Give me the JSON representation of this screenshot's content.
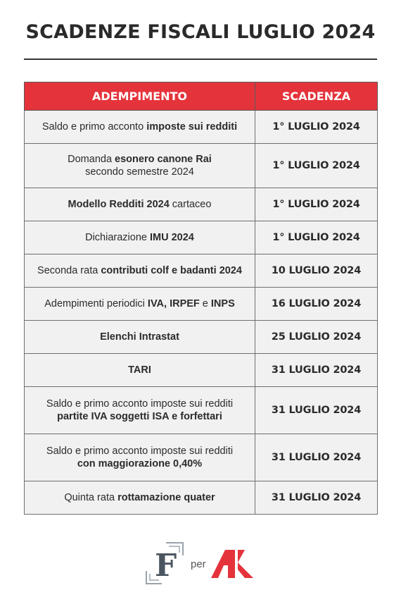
{
  "title": "SCADENZE FISCALI LUGLIO 2024",
  "table": {
    "headers": {
      "task": "ADEMPIMENTO",
      "deadline": "SCADENZA"
    },
    "rows": [
      {
        "task_parts": [
          {
            "text": "Saldo e primo acconto ",
            "bold": false
          },
          {
            "text": "imposte sui redditi",
            "bold": true
          }
        ],
        "deadline": "1° LUGLIO 2024"
      },
      {
        "task_parts": [
          {
            "text": "Domanda ",
            "bold": false
          },
          {
            "text": "esonero canone Rai",
            "bold": true
          },
          {
            "text": "\nsecondo semestre 2024",
            "bold": false
          }
        ],
        "deadline": "1° LUGLIO 2024"
      },
      {
        "task_parts": [
          {
            "text": "Modello Redditi 2024",
            "bold": true
          },
          {
            "text": " cartaceo",
            "bold": false
          }
        ],
        "deadline": "1° LUGLIO 2024"
      },
      {
        "task_parts": [
          {
            "text": "Dichiarazione ",
            "bold": false
          },
          {
            "text": "IMU 2024",
            "bold": true
          }
        ],
        "deadline": "1° LUGLIO 2024"
      },
      {
        "task_parts": [
          {
            "text": "Seconda rata ",
            "bold": false
          },
          {
            "text": "contributi colf e badanti 2024",
            "bold": true
          }
        ],
        "deadline": "10 LUGLIO 2024"
      },
      {
        "task_parts": [
          {
            "text": "Adempimenti periodici ",
            "bold": false
          },
          {
            "text": "IVA, IRPEF",
            "bold": true
          },
          {
            "text": " e ",
            "bold": false
          },
          {
            "text": "INPS",
            "bold": true
          }
        ],
        "deadline": "16 LUGLIO 2024"
      },
      {
        "task_parts": [
          {
            "text": "Elenchi Intrastat",
            "bold": true
          }
        ],
        "deadline": "25 LUGLIO 2024"
      },
      {
        "task_parts": [
          {
            "text": "TARI",
            "bold": true
          }
        ],
        "deadline": "31 LUGLIO 2024"
      },
      {
        "task_parts": [
          {
            "text": "Saldo e primo acconto imposte sui redditi",
            "bold": false
          },
          {
            "text": "\npartite IVA soggetti ISA e forfettari",
            "bold": true
          }
        ],
        "deadline": "31 LUGLIO 2024"
      },
      {
        "task_parts": [
          {
            "text": "Saldo e primo acconto imposte sui redditi",
            "bold": false
          },
          {
            "text": "\ncon maggiorazione 0,40%",
            "bold": true
          }
        ],
        "deadline": "31 LUGLIO 2024"
      },
      {
        "task_parts": [
          {
            "text": "Quinta rata ",
            "bold": false
          },
          {
            "text": "rottamazione quater",
            "bold": true
          }
        ],
        "deadline": "31 LUGLIO 2024"
      }
    ]
  },
  "footer": {
    "logo_left_letter": "F",
    "connector": "per",
    "logo_right_letters": "AK",
    "logo_right_color": "#e5333b",
    "logo_left_color": "#4a5560"
  },
  "colors": {
    "header_bg": "#e5333b",
    "row_bg": "#f1f1f1"
  }
}
